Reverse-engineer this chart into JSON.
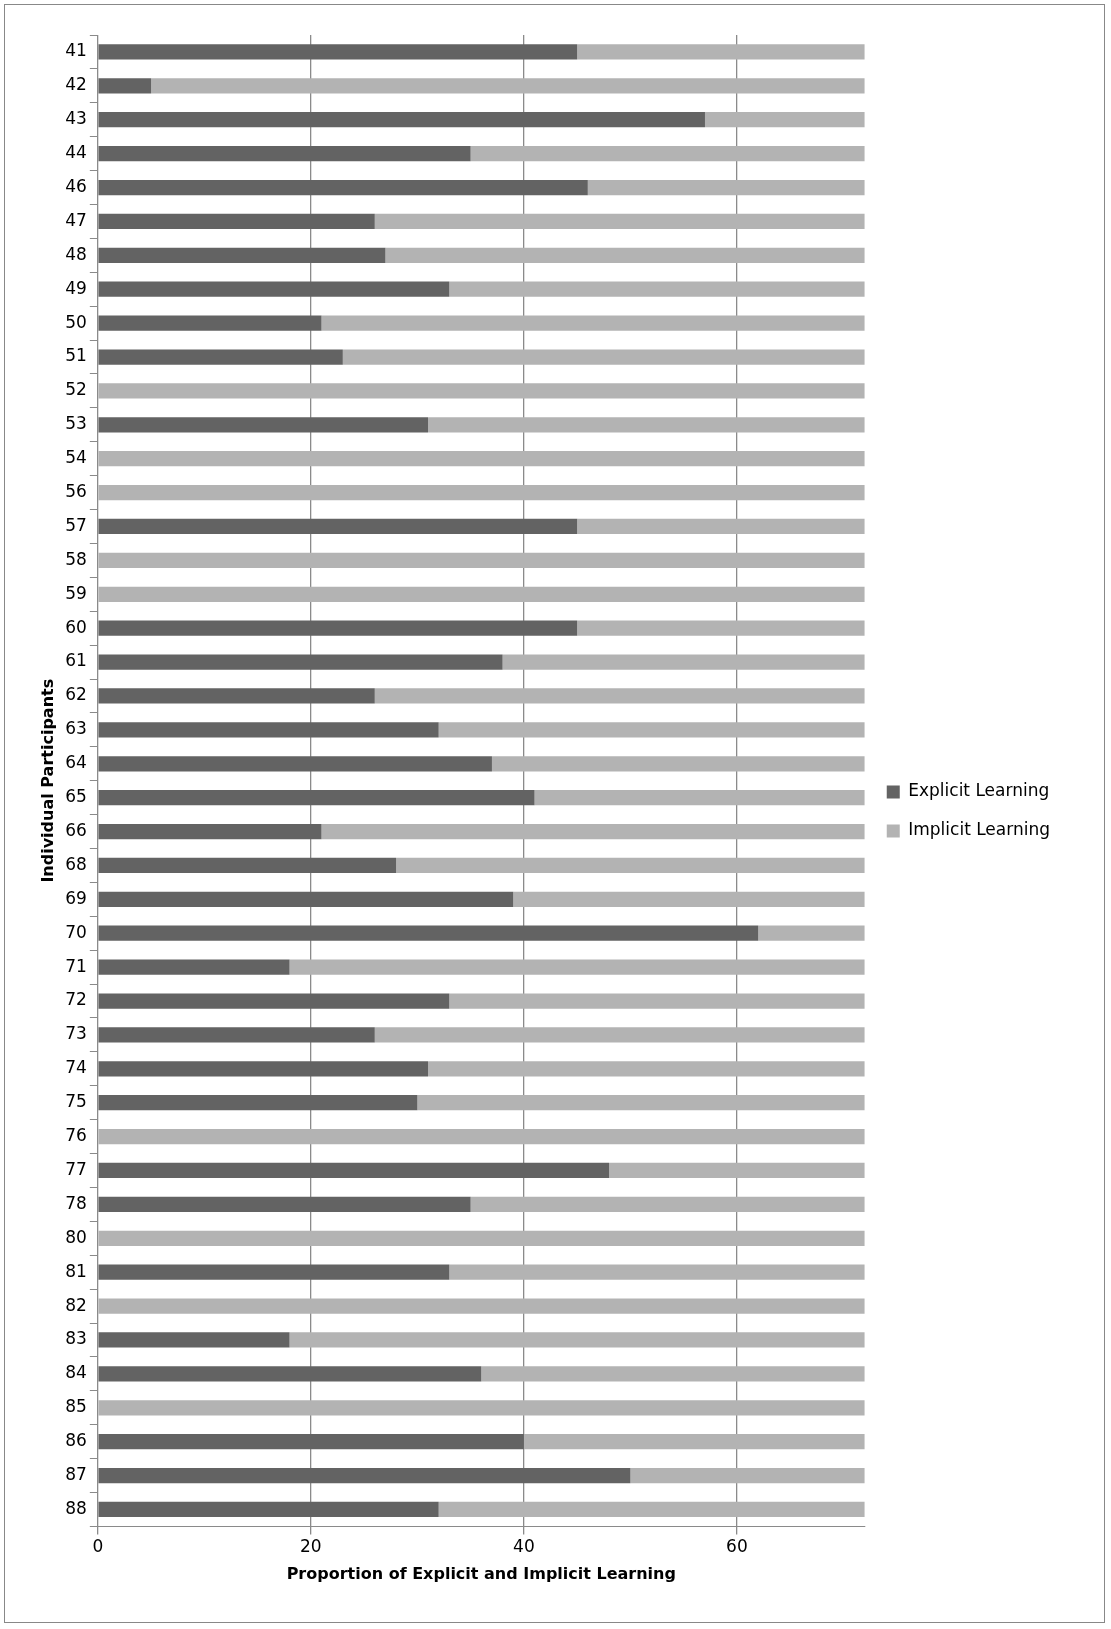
{
  "chart_data": {
    "type": "bar",
    "orientation": "horizontal",
    "stacked": true,
    "xlabel": "Proportion of Explicit and Implicit Learning",
    "ylabel": "Individual Participants",
    "categories": [
      "41",
      "42",
      "43",
      "44",
      "46",
      "47",
      "48",
      "49",
      "50",
      "51",
      "52",
      "53",
      "54",
      "56",
      "57",
      "58",
      "59",
      "60",
      "61",
      "62",
      "63",
      "64",
      "65",
      "66",
      "68",
      "69",
      "70",
      "71",
      "72",
      "73",
      "74",
      "75",
      "76",
      "77",
      "78",
      "80",
      "81",
      "82",
      "83",
      "84",
      "85",
      "86",
      "87",
      "88"
    ],
    "series": [
      {
        "name": "Explicit Learning",
        "color": "#636363",
        "values": [
          45,
          5,
          57,
          35,
          46,
          26,
          27,
          33,
          21,
          23,
          0,
          31,
          0,
          0,
          45,
          0,
          0,
          45,
          38,
          26,
          32,
          37,
          41,
          21,
          28,
          39,
          62,
          18,
          33,
          26,
          31,
          30,
          0,
          48,
          35,
          0,
          33,
          0,
          18,
          36,
          0,
          40,
          50,
          32
        ]
      },
      {
        "name": "Implicit Learning",
        "color": "#b3b3b3",
        "values": [
          27,
          67,
          15,
          37,
          26,
          46,
          45,
          39,
          51,
          49,
          72,
          41,
          72,
          72,
          27,
          72,
          72,
          27,
          34,
          46,
          40,
          35,
          31,
          51,
          44,
          33,
          10,
          54,
          39,
          46,
          41,
          42,
          72,
          24,
          37,
          72,
          39,
          72,
          54,
          36,
          72,
          32,
          22,
          40
        ]
      }
    ],
    "xlim": [
      0,
      72
    ],
    "xticks": [
      0,
      20,
      40,
      60
    ],
    "grid": "x",
    "legend": "right"
  }
}
